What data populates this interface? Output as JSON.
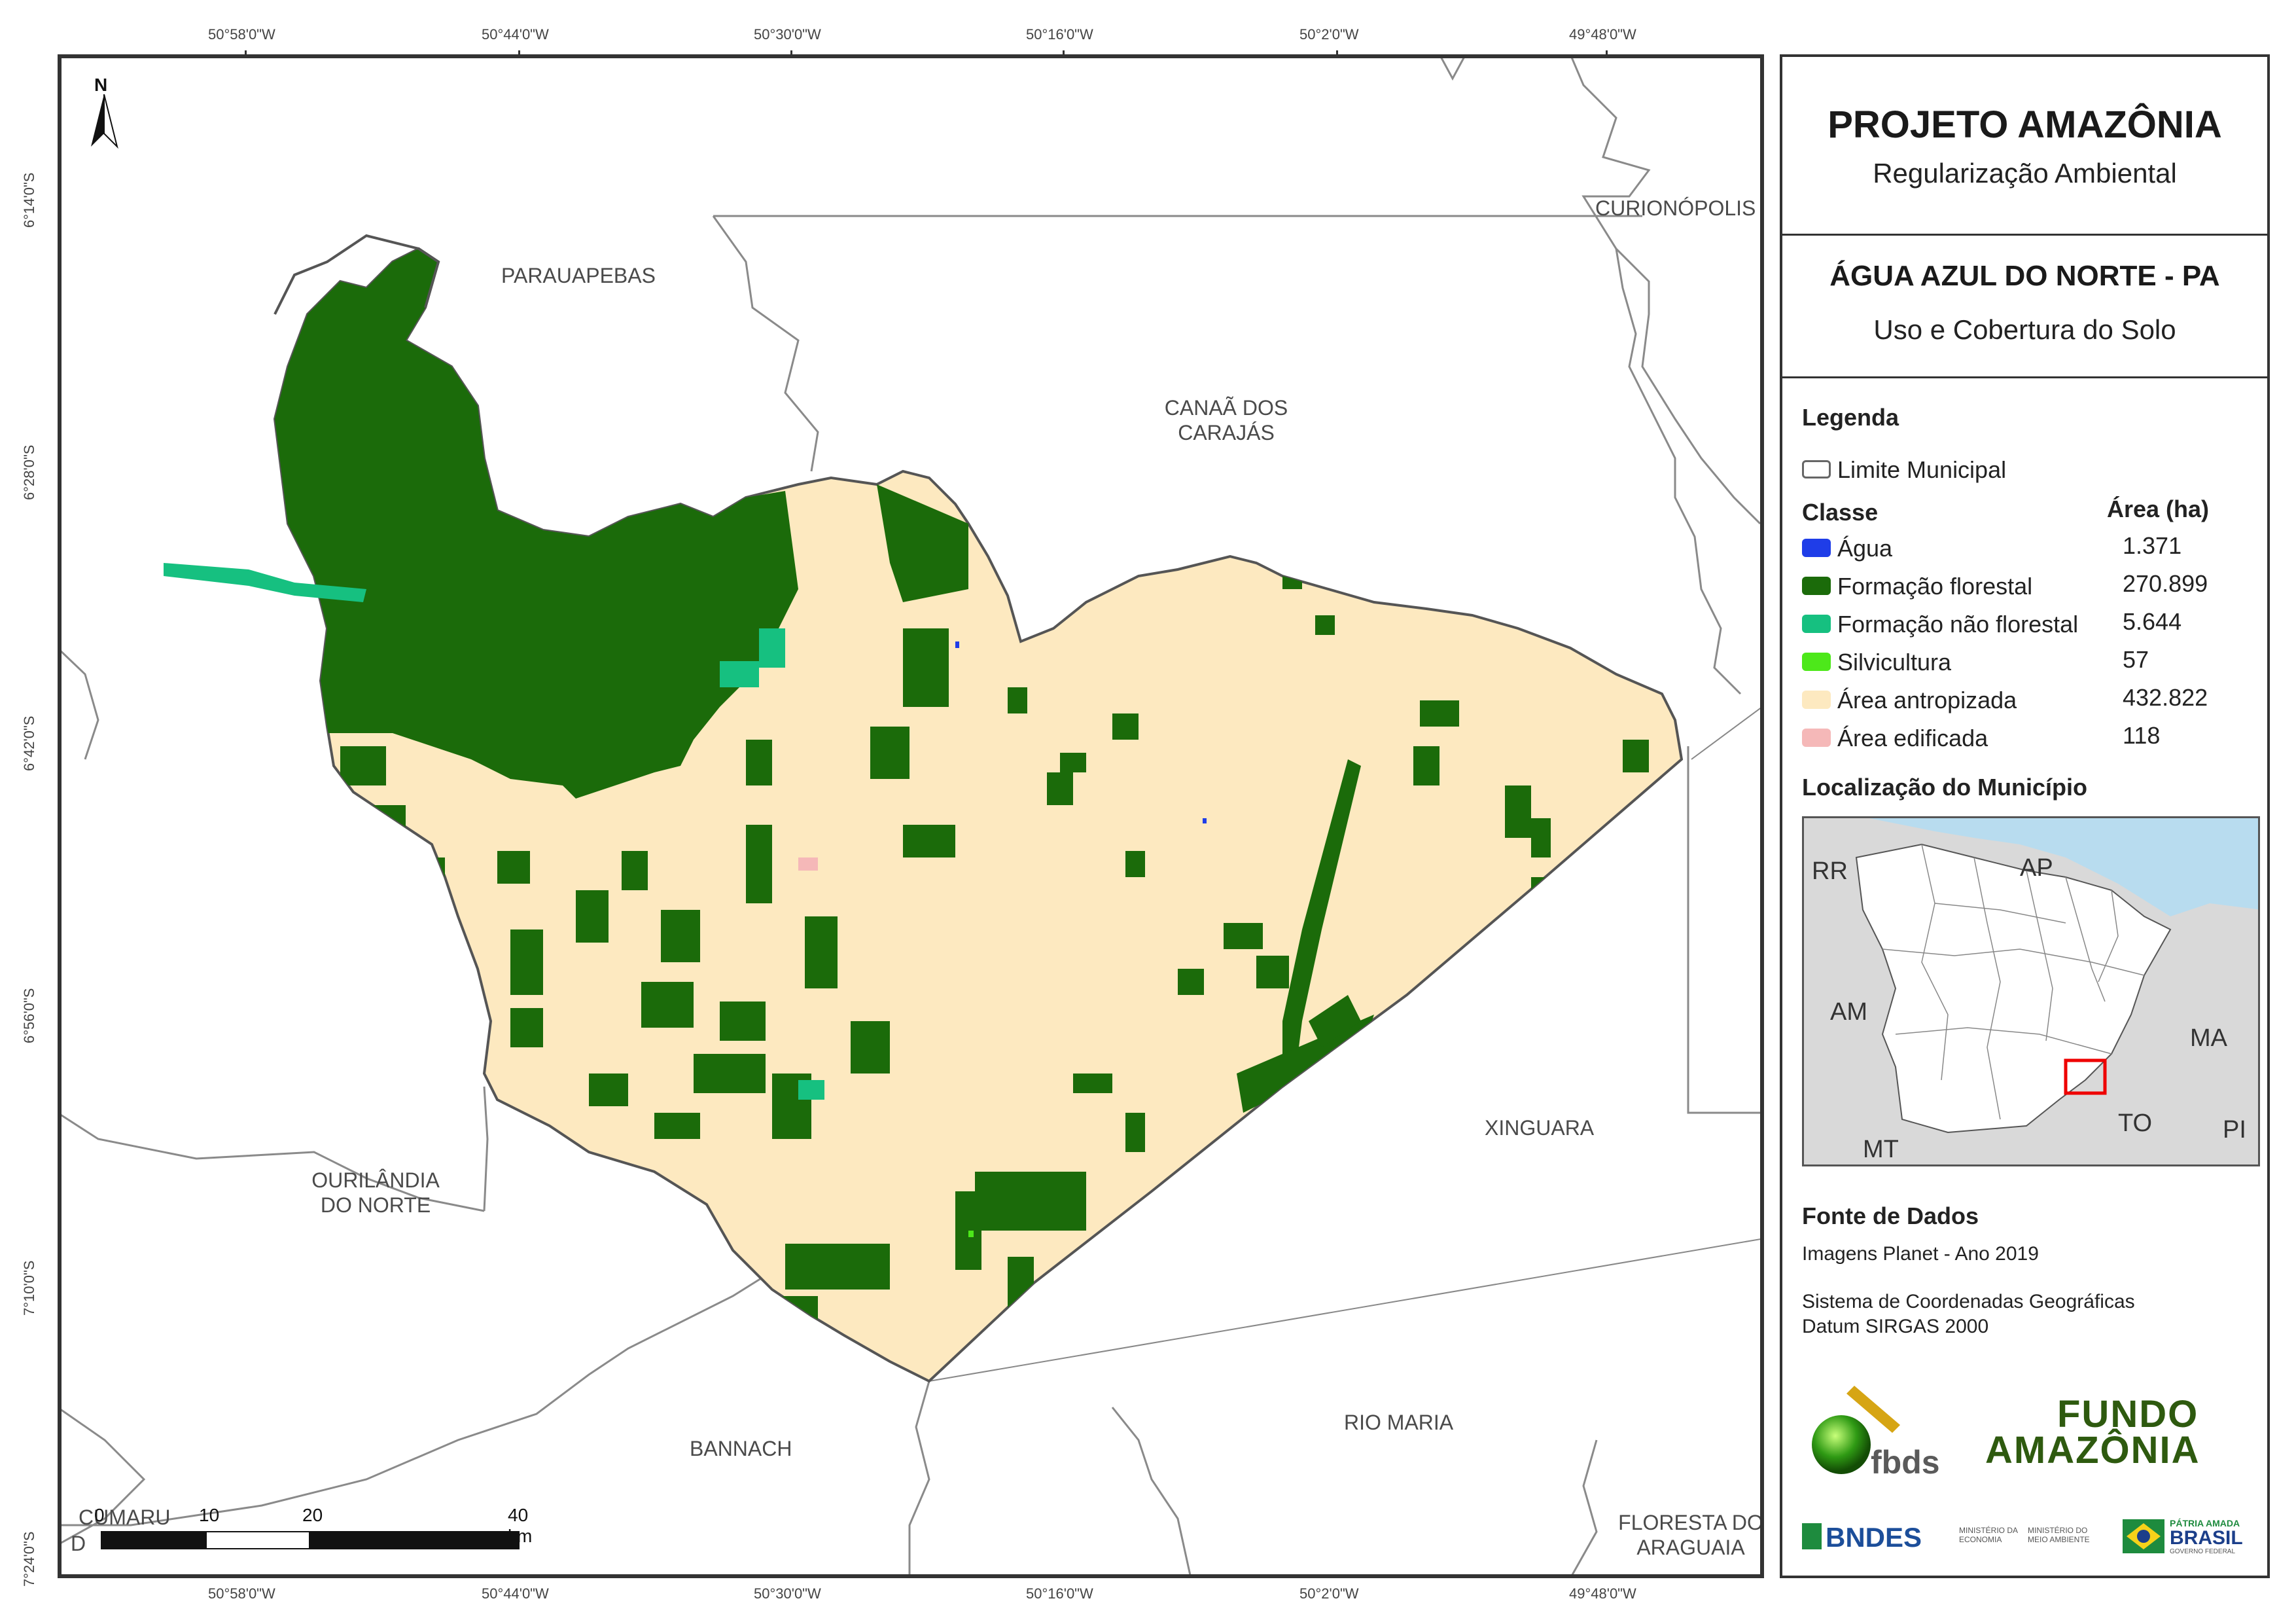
{
  "coords": {
    "top": [
      "50°58'0\"W",
      "50°44'0\"W",
      "50°30'0\"W",
      "50°16'0\"W",
      "50°2'0\"W",
      "49°48'0\"W"
    ],
    "bottom": [
      "50°58'0\"W",
      "50°44'0\"W",
      "50°30'0\"W",
      "50°16'0\"W",
      "50°2'0\"W",
      "49°48'0\"W"
    ],
    "left": [
      "6°14'0\"S",
      "6°28'0\"S",
      "6°42'0\"S",
      "6°56'0\"S",
      "7°10'0\"S",
      "7°24'0\"S"
    ]
  },
  "map": {
    "north": "N",
    "municipalities": {
      "parauapebas": "PARAUAPEBAS",
      "curionopolis": "CURIONÓPOLIS",
      "canaa_1": "CANAÃ DOS",
      "canaa_2": "CARAJÁS",
      "xinguara": "XINGUARA",
      "ourilandia_1": "OURILÂNDIA",
      "ourilandia_2": "DO NORTE",
      "bannach": "BANNACH",
      "rio_maria": "RIO MARIA",
      "cumaru": "CUMARU",
      "cumaru_2": "D",
      "floresta_1": "FLORESTA DO",
      "floresta_2": "ARAGUAIA"
    },
    "scale": {
      "labels": [
        "0",
        "10",
        "20",
        "40 km"
      ]
    }
  },
  "panel": {
    "title": "PROJETO AMAZÔNIA",
    "subtitle": "Regularização Ambiental",
    "municipality": "ÁGUA AZUL DO NORTE - PA",
    "theme": "Uso e Cobertura do Solo",
    "legend": {
      "heading": "Legenda",
      "boundary": "Limite Municipal",
      "class_header": "Classe",
      "area_header": "Área (ha)",
      "classes": [
        {
          "name": "Água",
          "area": "1.371",
          "color": "#1f3de8"
        },
        {
          "name": "Formação florestal",
          "area": "270.899",
          "color": "#1b6b0a"
        },
        {
          "name": "Formação não florestal",
          "area": "5.644",
          "color": "#16c080"
        },
        {
          "name": "Silvicultura",
          "area": "57",
          "color": "#4de81a"
        },
        {
          "name": "Área antropizada",
          "area": "432.822",
          "color": "#fde9c0"
        },
        {
          "name": "Área edificada",
          "area": "118",
          "color": "#f5b8b8"
        }
      ]
    },
    "location": {
      "heading": "Localização do Município",
      "states": [
        "RR",
        "AP",
        "AM",
        "MA",
        "TO",
        "MT",
        "PI"
      ]
    },
    "source": {
      "heading": "Fonte de Dados",
      "imagery": "Imagens Planet - Ano 2019",
      "crs_1": "Sistema de Coordenadas Geográficas",
      "crs_2": "Datum SIRGAS 2000"
    },
    "logos": {
      "fbds": "fbds",
      "fundo_1": "FUNDO",
      "fundo_2": "AMAZÔNIA",
      "bndes": "BNDES",
      "min_econ_1": "MINISTÉRIO DA",
      "min_econ_2": "ECONOMIA",
      "min_meio_1": "MINISTÉRIO DO",
      "min_meio_2": "MEIO AMBIENTE",
      "patria_1": "PÁTRIA AMADA",
      "patria_2": "BRASIL",
      "gov": "GOVERNO FEDERAL"
    }
  }
}
